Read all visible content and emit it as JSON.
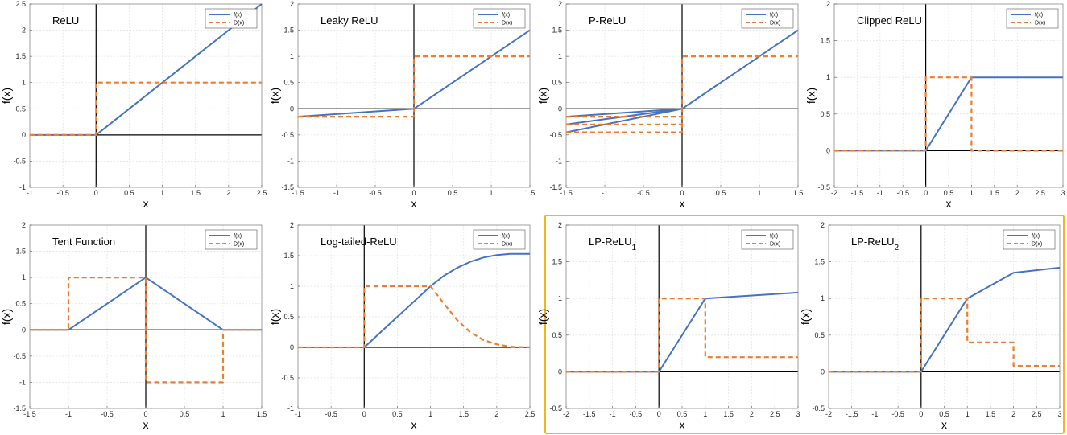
{
  "legend": {
    "f_label": "f(x)",
    "d_label": "D(x)"
  },
  "colors": {
    "f": "#4472C4",
    "d": "#ED7D31",
    "highlight": "#F2B61C",
    "grid": "#e4e4e4"
  },
  "chart_data": [
    {
      "id": "relu",
      "type": "line",
      "title": "ReLU",
      "title_sub": "",
      "xlabel": "x",
      "ylabel": "f(x)",
      "xlim": [
        -1,
        2.5
      ],
      "ylim": [
        -1,
        2.5
      ],
      "xticks": [
        -1,
        -0.5,
        0,
        0.5,
        1,
        1.5,
        2,
        2.5
      ],
      "yticks": [
        -1,
        -0.5,
        0,
        0.5,
        1,
        1.5,
        2,
        2.5
      ],
      "series": [
        {
          "name": "f(x)",
          "style": "solid",
          "x": [
            -1,
            0,
            2.5
          ],
          "y": [
            0,
            0,
            2.5
          ]
        },
        {
          "name": "D(x)",
          "style": "dashed",
          "x": [
            -1,
            0,
            0,
            2.5
          ],
          "y": [
            0,
            0,
            1,
            1
          ]
        }
      ]
    },
    {
      "id": "leaky",
      "type": "line",
      "title": "Leaky ReLU",
      "title_sub": "",
      "xlabel": "x",
      "ylabel": "f(x)",
      "xlim": [
        -1.5,
        1.5
      ],
      "ylim": [
        -1.5,
        2
      ],
      "xticks": [
        -1.5,
        -1,
        -0.5,
        0,
        0.5,
        1,
        1.5
      ],
      "yticks": [
        -1.5,
        -1,
        -0.5,
        0,
        0.5,
        1,
        1.5,
        2
      ],
      "series": [
        {
          "name": "f(x)",
          "style": "solid",
          "x": [
            -1.5,
            0,
            1.5
          ],
          "y": [
            -0.15,
            0,
            1.5
          ]
        },
        {
          "name": "D(x)",
          "style": "dashed",
          "x": [
            -1.5,
            0,
            0,
            1.5
          ],
          "y": [
            -0.15,
            -0.15,
            1,
            1
          ]
        }
      ]
    },
    {
      "id": "prelu",
      "type": "line",
      "title": "P-ReLU",
      "title_sub": "",
      "xlabel": "x",
      "ylabel": "f(x)",
      "xlim": [
        -1.5,
        1.5
      ],
      "ylim": [
        -1.5,
        2
      ],
      "xticks": [
        -1.5,
        -1,
        -0.5,
        0,
        0.5,
        1,
        1.5
      ],
      "yticks": [
        -1.5,
        -1,
        -0.5,
        0,
        0.5,
        1,
        1.5,
        2
      ],
      "series": [
        {
          "name": "f(x)",
          "style": "solid",
          "x": [
            -1.5,
            0,
            1.5
          ],
          "y": [
            -0.15,
            0,
            1.5
          ]
        },
        {
          "name": "f(x)",
          "style": "solid",
          "x": [
            -1.5,
            0
          ],
          "y": [
            -0.3,
            0
          ]
        },
        {
          "name": "f(x)",
          "style": "solid",
          "x": [
            -1.5,
            0
          ],
          "y": [
            -0.45,
            0
          ]
        },
        {
          "name": "D(x)",
          "style": "dashed",
          "x": [
            -1.5,
            0,
            0,
            1.5
          ],
          "y": [
            -0.15,
            -0.15,
            1,
            1
          ]
        },
        {
          "name": "D(x)",
          "style": "dashed",
          "x": [
            -1.5,
            0
          ],
          "y": [
            -0.3,
            -0.3
          ]
        },
        {
          "name": "D(x)",
          "style": "dashed",
          "x": [
            -1.5,
            0,
            0
          ],
          "y": [
            -0.45,
            -0.45,
            -0.15
          ]
        }
      ]
    },
    {
      "id": "clipped",
      "type": "line",
      "title": "Clipped ReLU",
      "title_sub": "",
      "xlabel": "x",
      "ylabel": "f(x)",
      "xlim": [
        -2,
        3
      ],
      "ylim": [
        -0.5,
        2
      ],
      "xticks": [
        -2,
        -1.5,
        -1,
        -0.5,
        0,
        0.5,
        1,
        1.5,
        2,
        2.5,
        3
      ],
      "yticks": [
        -0.5,
        0,
        0.5,
        1,
        1.5,
        2
      ],
      "series": [
        {
          "name": "f(x)",
          "style": "solid",
          "x": [
            -2,
            0,
            1,
            3
          ],
          "y": [
            0,
            0,
            1,
            1
          ]
        },
        {
          "name": "D(x)",
          "style": "dashed",
          "x": [
            -2,
            0,
            0,
            1,
            1,
            3
          ],
          "y": [
            0,
            0,
            1,
            1,
            0,
            0
          ]
        }
      ]
    },
    {
      "id": "tent",
      "type": "line",
      "title": "Tent Function",
      "title_sub": "",
      "xlabel": "x",
      "ylabel": "f(x)",
      "xlim": [
        -1.5,
        1.5
      ],
      "ylim": [
        -1.5,
        2
      ],
      "xticks": [
        -1.5,
        -1,
        -0.5,
        0,
        0.5,
        1,
        1.5
      ],
      "yticks": [
        -1.5,
        -1,
        -0.5,
        0,
        0.5,
        1,
        1.5,
        2
      ],
      "series": [
        {
          "name": "f(x)",
          "style": "solid",
          "x": [
            -1.5,
            -1,
            0,
            1,
            1.5
          ],
          "y": [
            0,
            0,
            1,
            0,
            0
          ]
        },
        {
          "name": "D(x)",
          "style": "dashed",
          "x": [
            -1.5,
            -1,
            -1,
            0,
            0,
            1,
            1,
            1.5
          ],
          "y": [
            0,
            0,
            1,
            1,
            -1,
            -1,
            0,
            0
          ]
        }
      ]
    },
    {
      "id": "logtail",
      "type": "line",
      "title": "Log-tailed-ReLU",
      "title_sub": "",
      "xlabel": "x",
      "ylabel": "f(x)",
      "xlim": [
        -1,
        2.5
      ],
      "ylim": [
        -1,
        2
      ],
      "xticks": [
        -1,
        -0.5,
        0,
        0.5,
        1,
        1.5,
        2,
        2.5
      ],
      "yticks": [
        -1,
        -0.5,
        0,
        0.5,
        1,
        1.5,
        2
      ],
      "series": [
        {
          "name": "f(x)",
          "style": "solid",
          "x": [
            -1,
            0,
            1,
            1.2,
            1.4,
            1.6,
            1.8,
            2,
            2.2,
            2.5
          ],
          "y": [
            0,
            0,
            1,
            1.17,
            1.3,
            1.4,
            1.47,
            1.51,
            1.53,
            1.53
          ]
        },
        {
          "name": "D(x)",
          "style": "dashed",
          "x": [
            -1,
            0,
            0,
            1,
            1.2,
            1.4,
            1.6,
            1.8,
            2,
            2.2,
            2.5
          ],
          "y": [
            0,
            0,
            1,
            1,
            0.72,
            0.45,
            0.25,
            0.12,
            0.05,
            0.01,
            0
          ]
        }
      ]
    },
    {
      "id": "lp1",
      "type": "line",
      "title": "LP-ReLU",
      "title_sub": "1",
      "xlabel": "x",
      "ylabel": "f(x)",
      "xlim": [
        -2,
        3
      ],
      "ylim": [
        -0.5,
        2
      ],
      "xticks": [
        -2,
        -1.5,
        -1,
        -0.5,
        0,
        0.5,
        1,
        1.5,
        2,
        2.5,
        3
      ],
      "yticks": [
        -0.5,
        0,
        0.5,
        1,
        1.5,
        2
      ],
      "series": [
        {
          "name": "f(x)",
          "style": "solid",
          "x": [
            -2,
            0,
            1,
            3
          ],
          "y": [
            0,
            0,
            1,
            1.08
          ]
        },
        {
          "name": "D(x)",
          "style": "dashed",
          "x": [
            -2,
            0,
            0,
            1,
            1,
            3
          ],
          "y": [
            0,
            0,
            1,
            1,
            0.2,
            0.2
          ]
        }
      ]
    },
    {
      "id": "lp2",
      "type": "line",
      "title": "LP-ReLU",
      "title_sub": "2",
      "xlabel": "x",
      "ylabel": "f(x)",
      "xlim": [
        -2,
        3
      ],
      "ylim": [
        -0.5,
        2
      ],
      "xticks": [
        -2,
        -1.5,
        -1,
        -0.5,
        0,
        0.5,
        1,
        1.5,
        2,
        2.5,
        3
      ],
      "yticks": [
        -0.5,
        0,
        0.5,
        1,
        1.5,
        2
      ],
      "series": [
        {
          "name": "f(x)",
          "style": "solid",
          "x": [
            -2,
            0,
            1,
            2,
            3
          ],
          "y": [
            0,
            0,
            1,
            1.35,
            1.42
          ]
        },
        {
          "name": "D(x)",
          "style": "dashed",
          "x": [
            -2,
            0,
            0,
            1,
            1,
            2,
            2,
            3
          ],
          "y": [
            0,
            0,
            1,
            1,
            0.4,
            0.4,
            0.08,
            0.08
          ]
        }
      ]
    }
  ]
}
